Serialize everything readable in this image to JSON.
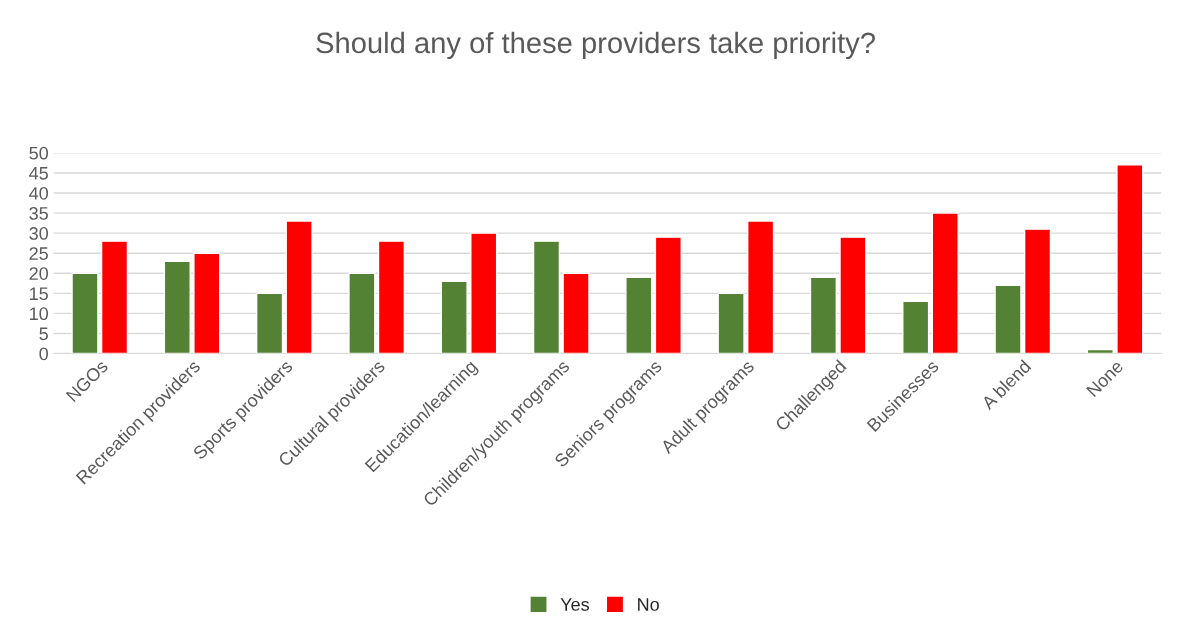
{
  "chart_data": {
    "type": "bar",
    "title": "Should any of these providers take priority?",
    "categories": [
      "NGOs",
      "Recreation providers",
      "Sports providers",
      "Cultural providers",
      "Education/learning",
      "Children/youth programs",
      "Seniors programs",
      "Adult programs",
      "Challenged",
      "Businesses",
      "A blend",
      "None"
    ],
    "series": [
      {
        "name": "Yes",
        "color": "#548235",
        "values": [
          20,
          23,
          15,
          20,
          18,
          28,
          19,
          15,
          19,
          13,
          17,
          1
        ]
      },
      {
        "name": "No",
        "color": "#ff0000",
        "values": [
          28,
          25,
          33,
          28,
          30,
          20,
          29,
          33,
          29,
          35,
          31,
          47
        ]
      }
    ],
    "ylim": [
      0,
      50
    ],
    "yticks": [
      0,
      5,
      10,
      15,
      20,
      25,
      30,
      35,
      40,
      45,
      50
    ],
    "grid": "y",
    "legend": "bottom"
  }
}
